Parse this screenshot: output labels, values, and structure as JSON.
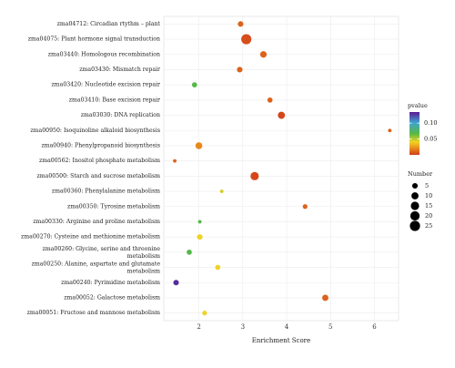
{
  "chart_data": {
    "type": "scatter",
    "xlabel": "Enrichment Score",
    "ylabel": "",
    "title": "",
    "xlim": [
      1.2,
      6.55
    ],
    "x_ticks": [
      2,
      3,
      4,
      5,
      6
    ],
    "grid": true,
    "legend_placement": "right",
    "categories": [
      "zma04712: Circadian rtythm – plant",
      "zma04075: Plant hormone signal transduction",
      "zma03440: Homologous recombination",
      "zma03430: Mismatch repair",
      "zma03420: Nucleotide excision repair",
      "zma03410: Base excision repair",
      "zma03030: DNA replication",
      "zma00950: Isoquinoline alkaloid biosynthesis",
      "zma00940: Phenylpropanoid biosynthesis",
      "zma00562: Inositol phosphate metabolism",
      "zma00500: Starch and sucrose metabolism",
      "zma00360: Phenylalanine metabolism",
      "zma00350: Tyrosine metabolism",
      "zma00330: Arginine and proline metabolism",
      "zma00270: Cysteine and methionine metabolism",
      "zma00260: Glycine, serine and threonine metabolism",
      "zma00250: Alanine, aspartate and glutamate metabolism",
      "zma00240: Pyrimidine metabolism",
      "zma00052: Galactose metabolism",
      "zma00051: Fructose and mannose metabolism"
    ],
    "points": [
      {
        "category": "zma04712: Circadian rtythm – plant",
        "x": 2.95,
        "number": 5,
        "pvalue": 0.01
      },
      {
        "category": "zma04075: Plant hormone signal transduction",
        "x": 3.08,
        "number": 25,
        "pvalue": 0.005
      },
      {
        "category": "zma03440: Homologous recombination",
        "x": 3.47,
        "number": 8,
        "pvalue": 0.01
      },
      {
        "category": "zma03430: Mismatch repair",
        "x": 2.93,
        "number": 5,
        "pvalue": 0.01
      },
      {
        "category": "zma03420: Nucleotide excision repair",
        "x": 1.9,
        "number": 4,
        "pvalue": 0.07
      },
      {
        "category": "zma03410: Base excision repair",
        "x": 3.62,
        "number": 4,
        "pvalue": 0.01
      },
      {
        "category": "zma03030: DNA replication",
        "x": 3.88,
        "number": 10,
        "pvalue": 0.003
      },
      {
        "category": "zma00950: Isoquinoline alkaloid biosynthesis",
        "x": 6.35,
        "number": 1,
        "pvalue": 0.01
      },
      {
        "category": "zma00940: Phenylpropanoid biosynthesis",
        "x": 2.0,
        "number": 9,
        "pvalue": 0.02
      },
      {
        "category": "zma00562: Inositol phosphate metabolism",
        "x": 1.45,
        "number": 1,
        "pvalue": 0.01
      },
      {
        "category": "zma00500: Starch and sucrose metabolism",
        "x": 3.27,
        "number": 15,
        "pvalue": 0.003
      },
      {
        "category": "zma00360: Phenylalanine metabolism",
        "x": 2.52,
        "number": 1,
        "pvalue": 0.05
      },
      {
        "category": "zma00350: Tyrosine metabolism",
        "x": 4.42,
        "number": 3,
        "pvalue": 0.01
      },
      {
        "category": "zma00330: Arginine and proline metabolism",
        "x": 2.02,
        "number": 1,
        "pvalue": 0.07
      },
      {
        "category": "zma00270: Cysteine and methionine metabolism",
        "x": 2.02,
        "number": 5,
        "pvalue": 0.045
      },
      {
        "category": "zma00260: Glycine, serine and threonine metabolism",
        "x": 1.78,
        "number": 4,
        "pvalue": 0.07
      },
      {
        "category": "zma00250: Alanine, aspartate and glutamate metabolism",
        "x": 2.43,
        "number": 4,
        "pvalue": 0.045
      },
      {
        "category": "zma00240: Pyrimidine metabolism",
        "x": 1.48,
        "number": 5,
        "pvalue": 0.13
      },
      {
        "category": "zma00052: Galactose metabolism",
        "x": 4.88,
        "number": 7,
        "pvalue": 0.01
      },
      {
        "category": "zma00051: Fructose and mannose metabolism",
        "x": 2.13,
        "number": 3,
        "pvalue": 0.045
      }
    ],
    "color_legend": {
      "title": "pvalue",
      "ticks": [
        0.1,
        0.05
      ],
      "tick_labels": [
        "0.10",
        "0.05"
      ],
      "range": [
        0.0,
        0.135
      ],
      "colors": [
        "#5b1a95",
        "#3fa4cf",
        "#55b847",
        "#f0d322",
        "#e8891c",
        "#d13a1a"
      ]
    },
    "size_legend": {
      "title": "Number",
      "values": [
        5,
        10,
        15,
        20,
        25
      ],
      "labels": [
        "5",
        "10",
        "15",
        "20",
        "25"
      ]
    }
  }
}
